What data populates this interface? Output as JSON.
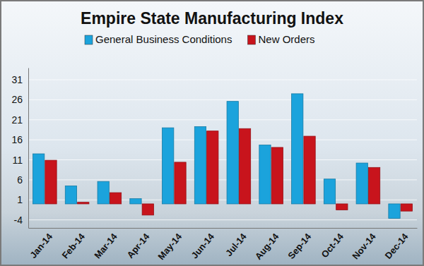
{
  "chart_data": {
    "type": "bar",
    "title": "Empire State Manufacturing Index",
    "categories": [
      "Jan-14",
      "Feb-14",
      "Mar-14",
      "Apr-14",
      "May-14",
      "Jun-14",
      "Jul-14",
      "Aug-14",
      "Sep-14",
      "Oct-14",
      "Nov-14",
      "Dec-14"
    ],
    "series": [
      {
        "name": "General Business Conditions",
        "color": "#1ba3dc",
        "values": [
          12.5,
          4.5,
          5.6,
          1.3,
          19.0,
          19.3,
          25.6,
          14.7,
          27.5,
          6.2,
          10.2,
          -3.6
        ]
      },
      {
        "name": "New Orders",
        "color": "#c8141c",
        "values": [
          10.9,
          0.4,
          2.8,
          -2.8,
          10.4,
          18.2,
          18.8,
          14.1,
          16.9,
          -1.5,
          9.1,
          -1.8
        ]
      }
    ],
    "ylim": [
      -6,
      34
    ],
    "yticks": [
      -4,
      1,
      6,
      11,
      16,
      21,
      26,
      31
    ],
    "grid": true,
    "legend": "top"
  }
}
